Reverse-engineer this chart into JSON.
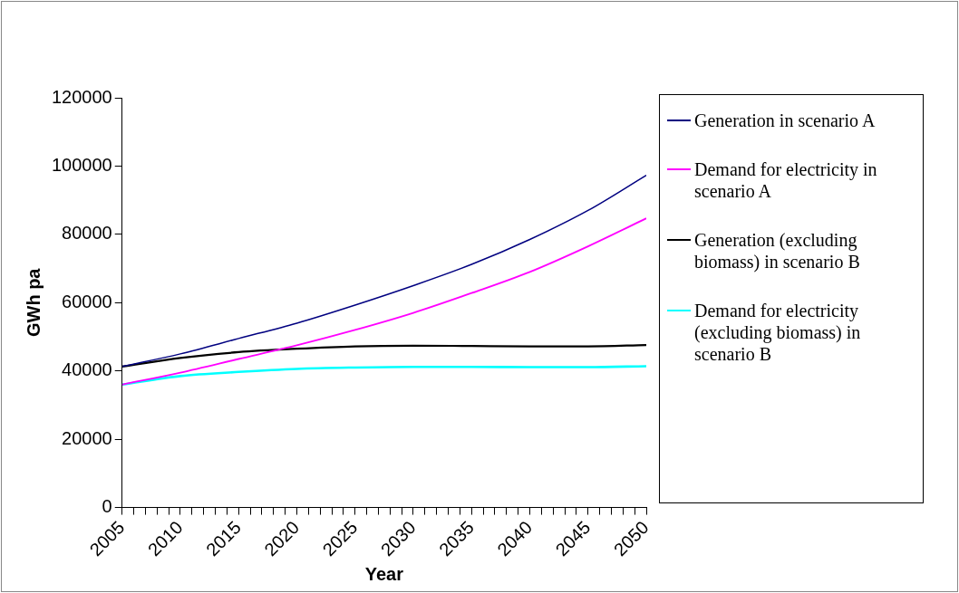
{
  "chart_data": {
    "type": "line",
    "xlabel": "Year",
    "ylabel": "GWh pa",
    "x": [
      2005,
      2010,
      2015,
      2020,
      2025,
      2030,
      2035,
      2040,
      2045,
      2050
    ],
    "series": [
      {
        "name": "Generation in scenario A",
        "color": "#000080",
        "values": [
          41300,
          45000,
          49500,
          54000,
          59300,
          65000,
          71200,
          78500,
          87000,
          97300
        ]
      },
      {
        "name": "Demand for electricity in scenario A",
        "color": "#ff00ff",
        "values": [
          36000,
          39500,
          43500,
          47500,
          52000,
          57000,
          62800,
          69000,
          76500,
          84700
        ]
      },
      {
        "name": "Generation (excluding biomass) in scenario B",
        "color": "#000000",
        "values": [
          41300,
          43800,
          45500,
          46500,
          47200,
          47400,
          47300,
          47200,
          47200,
          47600
        ]
      },
      {
        "name": "Demand for electricity (excluding biomass) in scenario B",
        "color": "#00ffff",
        "values": [
          36000,
          38500,
          39700,
          40600,
          41000,
          41200,
          41200,
          41100,
          41100,
          41400
        ]
      }
    ],
    "xlim": [
      2005,
      2050
    ],
    "xticks": [
      2005,
      {
        "value": 2006,
        "label": null
      },
      {
        "value": 2007,
        "label": null
      },
      {
        "value": 2008,
        "label": null
      },
      {
        "value": 2009,
        "label": null
      },
      2010,
      {
        "value": 2011,
        "label": null
      },
      {
        "value": 2012,
        "label": null
      },
      {
        "value": 2013,
        "label": null
      },
      {
        "value": 2014,
        "label": null
      },
      2015,
      {
        "value": 2016,
        "label": null
      },
      {
        "value": 2017,
        "label": null
      },
      {
        "value": 2018,
        "label": null
      },
      {
        "value": 2019,
        "label": null
      },
      2020,
      {
        "value": 2021,
        "label": null
      },
      {
        "value": 2022,
        "label": null
      },
      {
        "value": 2023,
        "label": null
      },
      {
        "value": 2024,
        "label": null
      },
      2025,
      {
        "value": 2026,
        "label": null
      },
      {
        "value": 2027,
        "label": null
      },
      {
        "value": 2028,
        "label": null
      },
      {
        "value": 2029,
        "label": null
      },
      2030,
      {
        "value": 2031,
        "label": null
      },
      {
        "value": 2032,
        "label": null
      },
      {
        "value": 2033,
        "label": null
      },
      {
        "value": 2034,
        "label": null
      },
      2035,
      {
        "value": 2036,
        "label": null
      },
      {
        "value": 2037,
        "label": null
      },
      {
        "value": 2038,
        "label": null
      },
      {
        "value": 2039,
        "label": null
      },
      2040,
      {
        "value": 2041,
        "label": null
      },
      {
        "value": 2042,
        "label": null
      },
      {
        "value": 2043,
        "label": null
      },
      {
        "value": 2044,
        "label": null
      },
      2045,
      {
        "value": 2046,
        "label": null
      },
      {
        "value": 2047,
        "label": null
      },
      {
        "value": 2048,
        "label": null
      },
      {
        "value": 2049,
        "label": null
      },
      2050
    ],
    "ylim": [
      0,
      120000
    ],
    "yticks": [
      0,
      20000,
      40000,
      60000,
      80000,
      100000,
      120000
    ],
    "grid": false,
    "legend": "right",
    "marker": "none",
    "line_style": "solid"
  }
}
